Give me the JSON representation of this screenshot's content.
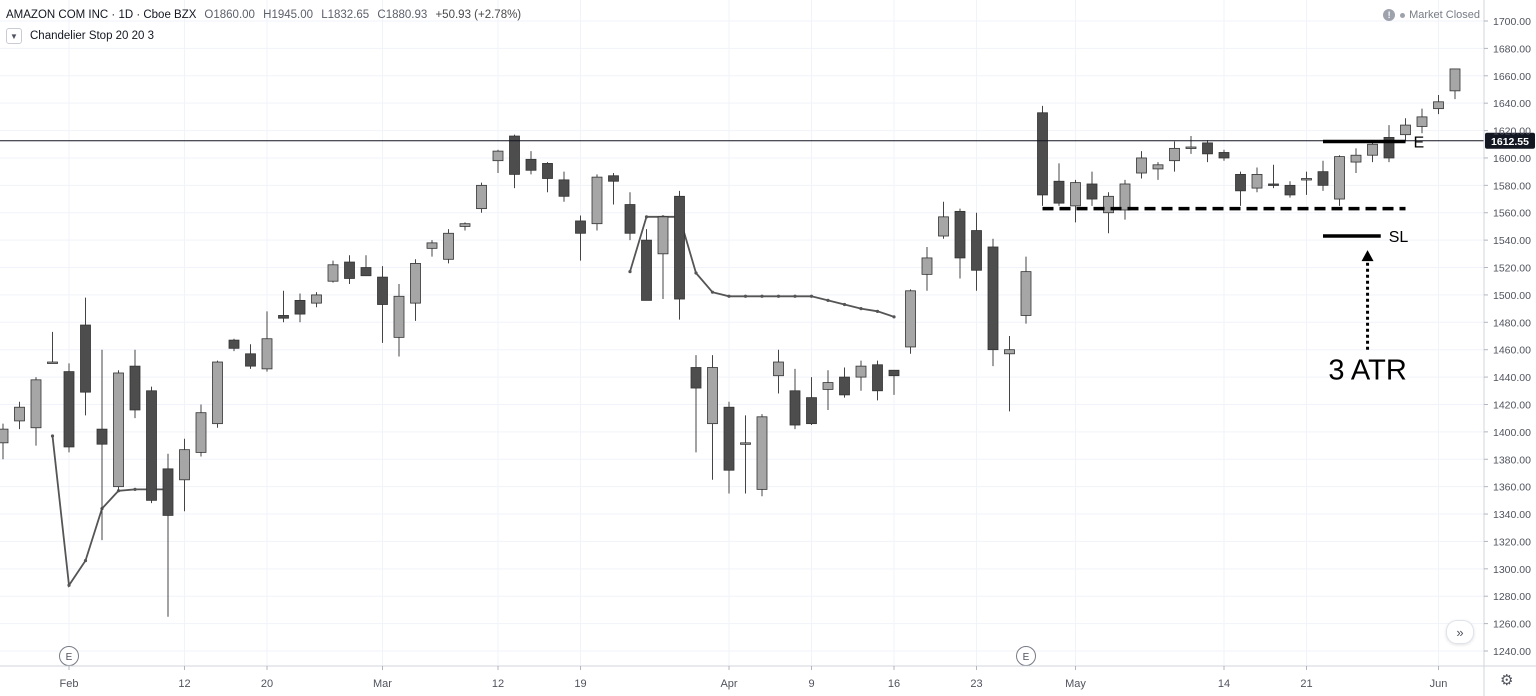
{
  "header": {
    "title": "AMAZON COM INC · 1D · Cboe BZX",
    "open": "O1860.00",
    "high": "H1945.00",
    "low": "L1832.65",
    "close": "C1880.93",
    "change": "+50.93 (+2.78%)",
    "indicator": "Chandelier Stop 20 20 3",
    "status": "Market Closed"
  },
  "colors": {
    "up_candle": "#a6a6a6",
    "down_candle": "#4d4d4d",
    "stop_line": "#555555",
    "annotation": "#000000",
    "price_tag": "#131722"
  },
  "chart_data": {
    "type": "candlestick",
    "ylim": [
      1225,
      1720
    ],
    "y_ticks": [
      1240,
      1260,
      1280,
      1300,
      1320,
      1340,
      1360,
      1380,
      1400,
      1420,
      1440,
      1460,
      1480,
      1500,
      1520,
      1540,
      1560,
      1580,
      1600,
      1620,
      1640,
      1660,
      1680,
      1700
    ],
    "x_ticks": [
      {
        "label": "Feb",
        "i": 4
      },
      {
        "label": "12",
        "i": 11
      },
      {
        "label": "20",
        "i": 16
      },
      {
        "label": "Mar",
        "i": 23
      },
      {
        "label": "12",
        "i": 30
      },
      {
        "label": "19",
        "i": 35
      },
      {
        "label": "Apr",
        "i": 44
      },
      {
        "label": "9",
        "i": 49
      },
      {
        "label": "16",
        "i": 54
      },
      {
        "label": "23",
        "i": 59
      },
      {
        "label": "May",
        "i": 65
      },
      {
        "label": "14",
        "i": 74
      },
      {
        "label": "21",
        "i": 79
      },
      {
        "label": "Jun",
        "i": 87
      }
    ],
    "candles": [
      {
        "o": 1392,
        "h": 1406,
        "l": 1380,
        "c": 1402
      },
      {
        "o": 1408,
        "h": 1422,
        "l": 1402,
        "c": 1418
      },
      {
        "o": 1403,
        "h": 1440,
        "l": 1390,
        "c": 1438
      },
      {
        "o": 1451,
        "h": 1473,
        "l": 1450,
        "c": 1451
      },
      {
        "o": 1444,
        "h": 1450,
        "l": 1385,
        "c": 1389
      },
      {
        "o": 1478,
        "h": 1498,
        "l": 1412,
        "c": 1429
      },
      {
        "o": 1402,
        "h": 1460,
        "l": 1321,
        "c": 1391
      },
      {
        "o": 1360,
        "h": 1445,
        "l": 1357,
        "c": 1443
      },
      {
        "o": 1448,
        "h": 1460,
        "l": 1410,
        "c": 1416
      },
      {
        "o": 1430,
        "h": 1433,
        "l": 1348,
        "c": 1350
      },
      {
        "o": 1373,
        "h": 1384,
        "l": 1265,
        "c": 1339
      },
      {
        "o": 1365,
        "h": 1395,
        "l": 1342,
        "c": 1387
      },
      {
        "o": 1385,
        "h": 1420,
        "l": 1382,
        "c": 1414
      },
      {
        "o": 1406,
        "h": 1452,
        "l": 1403,
        "c": 1451
      },
      {
        "o": 1467,
        "h": 1468,
        "l": 1459,
        "c": 1461
      },
      {
        "o": 1457,
        "h": 1464,
        "l": 1446,
        "c": 1448
      },
      {
        "o": 1446,
        "h": 1488,
        "l": 1444,
        "c": 1468
      },
      {
        "o": 1485,
        "h": 1503,
        "l": 1480,
        "c": 1483
      },
      {
        "o": 1496,
        "h": 1501,
        "l": 1480,
        "c": 1486
      },
      {
        "o": 1494,
        "h": 1502,
        "l": 1491,
        "c": 1500
      },
      {
        "o": 1510,
        "h": 1525,
        "l": 1509,
        "c": 1522
      },
      {
        "o": 1524,
        "h": 1529,
        "l": 1508,
        "c": 1512
      },
      {
        "o": 1520,
        "h": 1529,
        "l": 1515,
        "c": 1514
      },
      {
        "o": 1513,
        "h": 1521,
        "l": 1465,
        "c": 1493
      },
      {
        "o": 1469,
        "h": 1508,
        "l": 1455,
        "c": 1499
      },
      {
        "o": 1494,
        "h": 1526,
        "l": 1481,
        "c": 1523
      },
      {
        "o": 1534,
        "h": 1540,
        "l": 1528,
        "c": 1538
      },
      {
        "o": 1526,
        "h": 1548,
        "l": 1523,
        "c": 1545
      },
      {
        "o": 1550,
        "h": 1553,
        "l": 1547,
        "c": 1552
      },
      {
        "o": 1563,
        "h": 1582,
        "l": 1560,
        "c": 1580
      },
      {
        "o": 1598,
        "h": 1606,
        "l": 1589,
        "c": 1605
      },
      {
        "o": 1616,
        "h": 1617,
        "l": 1578,
        "c": 1588
      },
      {
        "o": 1599,
        "h": 1605,
        "l": 1588,
        "c": 1591
      },
      {
        "o": 1596,
        "h": 1597,
        "l": 1575,
        "c": 1585
      },
      {
        "o": 1584,
        "h": 1590,
        "l": 1568,
        "c": 1572
      },
      {
        "o": 1554,
        "h": 1558,
        "l": 1525,
        "c": 1545
      },
      {
        "o": 1552,
        "h": 1588,
        "l": 1547,
        "c": 1586
      },
      {
        "o": 1587,
        "h": 1589,
        "l": 1566,
        "c": 1583
      },
      {
        "o": 1566,
        "h": 1575,
        "l": 1540,
        "c": 1545
      },
      {
        "o": 1540,
        "h": 1548,
        "l": 1496,
        "c": 1496
      },
      {
        "o": 1530,
        "h": 1558,
        "l": 1497,
        "c": 1557
      },
      {
        "o": 1572,
        "h": 1576,
        "l": 1482,
        "c": 1497
      },
      {
        "o": 1447,
        "h": 1456,
        "l": 1385,
        "c": 1432
      },
      {
        "o": 1406,
        "h": 1456,
        "l": 1365,
        "c": 1447
      },
      {
        "o": 1418,
        "h": 1422,
        "l": 1355,
        "c": 1372
      },
      {
        "o": 1392,
        "h": 1412,
        "l": 1355,
        "c": 1392
      },
      {
        "o": 1358,
        "h": 1413,
        "l": 1353,
        "c": 1411
      },
      {
        "o": 1441,
        "h": 1460,
        "l": 1428,
        "c": 1451
      },
      {
        "o": 1430,
        "h": 1446,
        "l": 1402,
        "c": 1405
      },
      {
        "o": 1425,
        "h": 1440,
        "l": 1405,
        "c": 1406
      },
      {
        "o": 1431,
        "h": 1445,
        "l": 1416,
        "c": 1436
      },
      {
        "o": 1440,
        "h": 1447,
        "l": 1425,
        "c": 1427
      },
      {
        "o": 1440,
        "h": 1452,
        "l": 1430,
        "c": 1448
      },
      {
        "o": 1449,
        "h": 1452,
        "l": 1423,
        "c": 1430
      },
      {
        "o": 1445,
        "h": 1445,
        "l": 1427,
        "c": 1441
      },
      {
        "o": 1462,
        "h": 1504,
        "l": 1457,
        "c": 1503
      },
      {
        "o": 1515,
        "h": 1535,
        "l": 1503,
        "c": 1527
      },
      {
        "o": 1543,
        "h": 1568,
        "l": 1541,
        "c": 1557
      },
      {
        "o": 1561,
        "h": 1563,
        "l": 1512,
        "c": 1527
      },
      {
        "o": 1547,
        "h": 1560,
        "l": 1503,
        "c": 1518
      },
      {
        "o": 1535,
        "h": 1541,
        "l": 1448,
        "c": 1460
      },
      {
        "o": 1457,
        "h": 1470,
        "l": 1415,
        "c": 1460
      },
      {
        "o": 1485,
        "h": 1528,
        "l": 1479,
        "c": 1517
      },
      {
        "o": 1633,
        "h": 1638,
        "l": 1565,
        "c": 1573
      },
      {
        "o": 1583,
        "h": 1596,
        "l": 1565,
        "c": 1567
      },
      {
        "o": 1565,
        "h": 1584,
        "l": 1553,
        "c": 1582
      },
      {
        "o": 1581,
        "h": 1590,
        "l": 1565,
        "c": 1570
      },
      {
        "o": 1560,
        "h": 1575,
        "l": 1545,
        "c": 1572
      },
      {
        "o": 1562,
        "h": 1584,
        "l": 1555,
        "c": 1581
      },
      {
        "o": 1589,
        "h": 1605,
        "l": 1585,
        "c": 1600
      },
      {
        "o": 1592,
        "h": 1597,
        "l": 1584,
        "c": 1595
      },
      {
        "o": 1598,
        "h": 1612,
        "l": 1590,
        "c": 1607
      },
      {
        "o": 1608,
        "h": 1616,
        "l": 1603,
        "c": 1608
      },
      {
        "o": 1611,
        "h": 1613,
        "l": 1597,
        "c": 1603
      },
      {
        "o": 1604,
        "h": 1606,
        "l": 1598,
        "c": 1600
      },
      {
        "o": 1588,
        "h": 1590,
        "l": 1565,
        "c": 1576
      },
      {
        "o": 1578,
        "h": 1593,
        "l": 1575,
        "c": 1588
      },
      {
        "o": 1581,
        "h": 1595,
        "l": 1578,
        "c": 1580
      },
      {
        "o": 1580,
        "h": 1583,
        "l": 1571,
        "c": 1573
      },
      {
        "o": 1585,
        "h": 1590,
        "l": 1573,
        "c": 1585
      },
      {
        "o": 1590,
        "h": 1598,
        "l": 1576,
        "c": 1580
      },
      {
        "o": 1570,
        "h": 1602,
        "l": 1565,
        "c": 1601
      },
      {
        "o": 1597,
        "h": 1607,
        "l": 1589,
        "c": 1602
      },
      {
        "o": 1602,
        "h": 1612,
        "l": 1597,
        "c": 1610
      },
      {
        "o": 1615,
        "h": 1624,
        "l": 1597,
        "c": 1600
      },
      {
        "o": 1617,
        "h": 1629,
        "l": 1612,
        "c": 1624
      },
      {
        "o": 1623,
        "h": 1636,
        "l": 1618,
        "c": 1630
      },
      {
        "o": 1636,
        "h": 1646,
        "l": 1632,
        "c": 1641
      },
      {
        "o": 1649,
        "h": 1665,
        "l": 1643,
        "c": 1665
      }
    ],
    "stop_line_segments": [
      [
        {
          "i": 3,
          "v": 1397
        },
        {
          "i": 4,
          "v": 1288
        },
        {
          "i": 5,
          "v": 1306
        },
        {
          "i": 6,
          "v": 1344
        },
        {
          "i": 7,
          "v": 1357
        },
        {
          "i": 8,
          "v": 1358
        },
        {
          "i": 9,
          "v": 1358
        },
        {
          "i": 10,
          "v": 1358
        }
      ],
      [
        {
          "i": 38,
          "v": 1517
        },
        {
          "i": 39,
          "v": 1557
        },
        {
          "i": 40,
          "v": 1557
        },
        {
          "i": 41,
          "v": 1557
        },
        {
          "i": 42,
          "v": 1516
        },
        {
          "i": 43,
          "v": 1502
        },
        {
          "i": 44,
          "v": 1499
        },
        {
          "i": 45,
          "v": 1499
        },
        {
          "i": 46,
          "v": 1499
        },
        {
          "i": 47,
          "v": 1499
        },
        {
          "i": 48,
          "v": 1499
        },
        {
          "i": 49,
          "v": 1499
        },
        {
          "i": 50,
          "v": 1496
        },
        {
          "i": 51,
          "v": 1493
        },
        {
          "i": 52,
          "v": 1490
        },
        {
          "i": 53,
          "v": 1488
        },
        {
          "i": 54,
          "v": 1484
        }
      ]
    ],
    "horizontal_line": {
      "value": 1612.55,
      "label": "1612.55"
    },
    "annotations": {
      "entry_line": {
        "from": 80,
        "to": 85,
        "value": 1612,
        "label": "E"
      },
      "dashed_support": {
        "from": 63,
        "to": 85,
        "value": 1563
      },
      "stop_loss_line": {
        "from": 80,
        "to": 83.5,
        "value": 1543,
        "label": "SL"
      },
      "atr_arrow": {
        "i": 82.7,
        "from": 1460,
        "to": 1532
      },
      "atr_label": "3 ATR"
    },
    "earnings_markers": [
      {
        "i": 4,
        "label": "E"
      },
      {
        "i": 62,
        "label": "E"
      }
    ]
  }
}
